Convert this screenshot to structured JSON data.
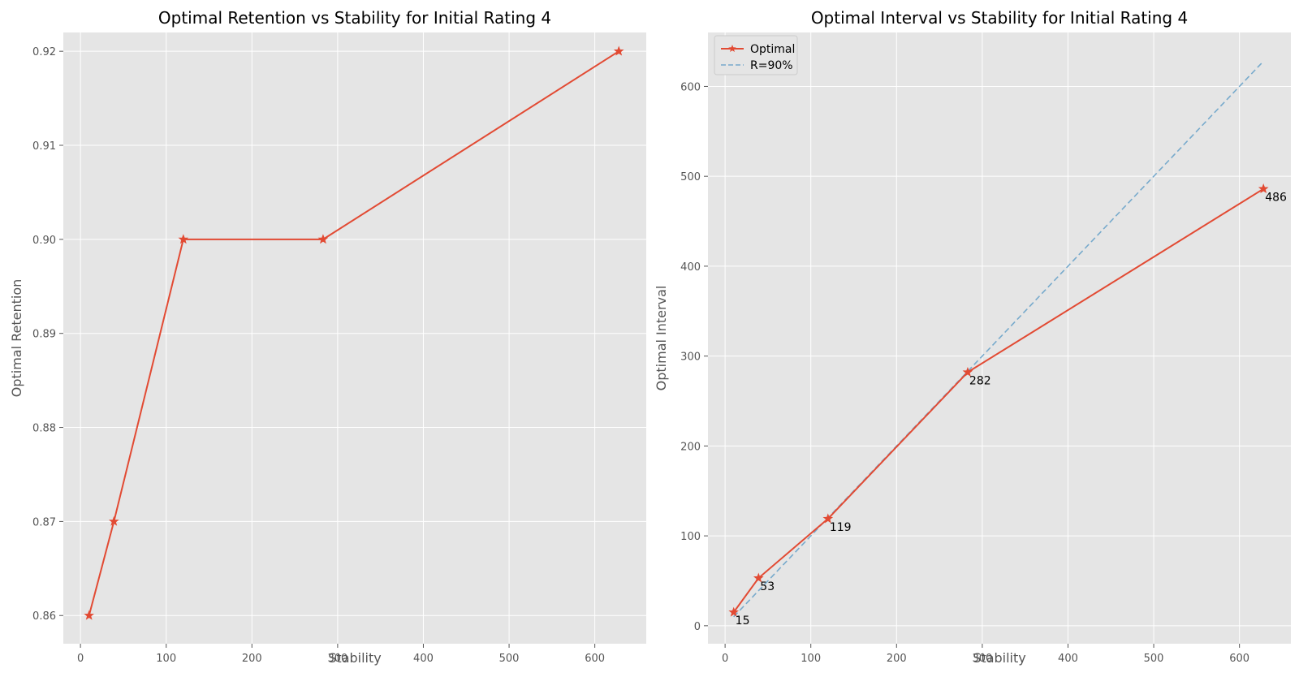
{
  "colors": {
    "background": "#e5e5e5",
    "grid": "#ffffff",
    "optimal": "#e24a33",
    "baseline": "#77aacc",
    "text": "#000000",
    "axis_text": "#555555"
  },
  "chart_data": [
    {
      "type": "line",
      "title": "Optimal Retention vs Stability for Initial Rating 4",
      "xlabel": "Stability",
      "ylabel": "Optimal Retention",
      "xlim": [
        -20,
        660
      ],
      "ylim": [
        0.857,
        0.922
      ],
      "xticks": [
        0,
        100,
        200,
        300,
        400,
        500,
        600
      ],
      "yticks": [
        0.86,
        0.87,
        0.88,
        0.89,
        0.9,
        0.91,
        0.92
      ],
      "ytick_labels": [
        "0.86",
        "0.87",
        "0.88",
        "0.89",
        "0.90",
        "0.91",
        "0.92"
      ],
      "grid": true,
      "series": [
        {
          "marker": "star",
          "color": "#e24a33",
          "x": [
            10,
            39,
            120,
            283,
            628
          ],
          "y": [
            0.86,
            0.87,
            0.9,
            0.9,
            0.92
          ]
        }
      ]
    },
    {
      "type": "line",
      "title": "Optimal Interval vs Stability for Initial Rating 4",
      "xlabel": "Stability",
      "ylabel": "Optimal Interval",
      "xlim": [
        -20,
        660
      ],
      "ylim": [
        -20,
        660
      ],
      "xticks": [
        0,
        100,
        200,
        300,
        400,
        500,
        600
      ],
      "yticks": [
        0,
        100,
        200,
        300,
        400,
        500,
        600
      ],
      "grid": true,
      "legend": "top-left",
      "series": [
        {
          "name": "Optimal",
          "marker": "star",
          "color": "#e24a33",
          "x": [
            10,
            39,
            120,
            283,
            628
          ],
          "y": [
            15,
            53,
            119,
            282,
            486
          ],
          "labels": [
            "15",
            "53",
            "119",
            "282",
            "486"
          ]
        },
        {
          "name": "R=90%",
          "style": "dashed",
          "color": "#77aacc",
          "x": [
            10,
            628
          ],
          "y": [
            10,
            628
          ]
        }
      ]
    }
  ]
}
